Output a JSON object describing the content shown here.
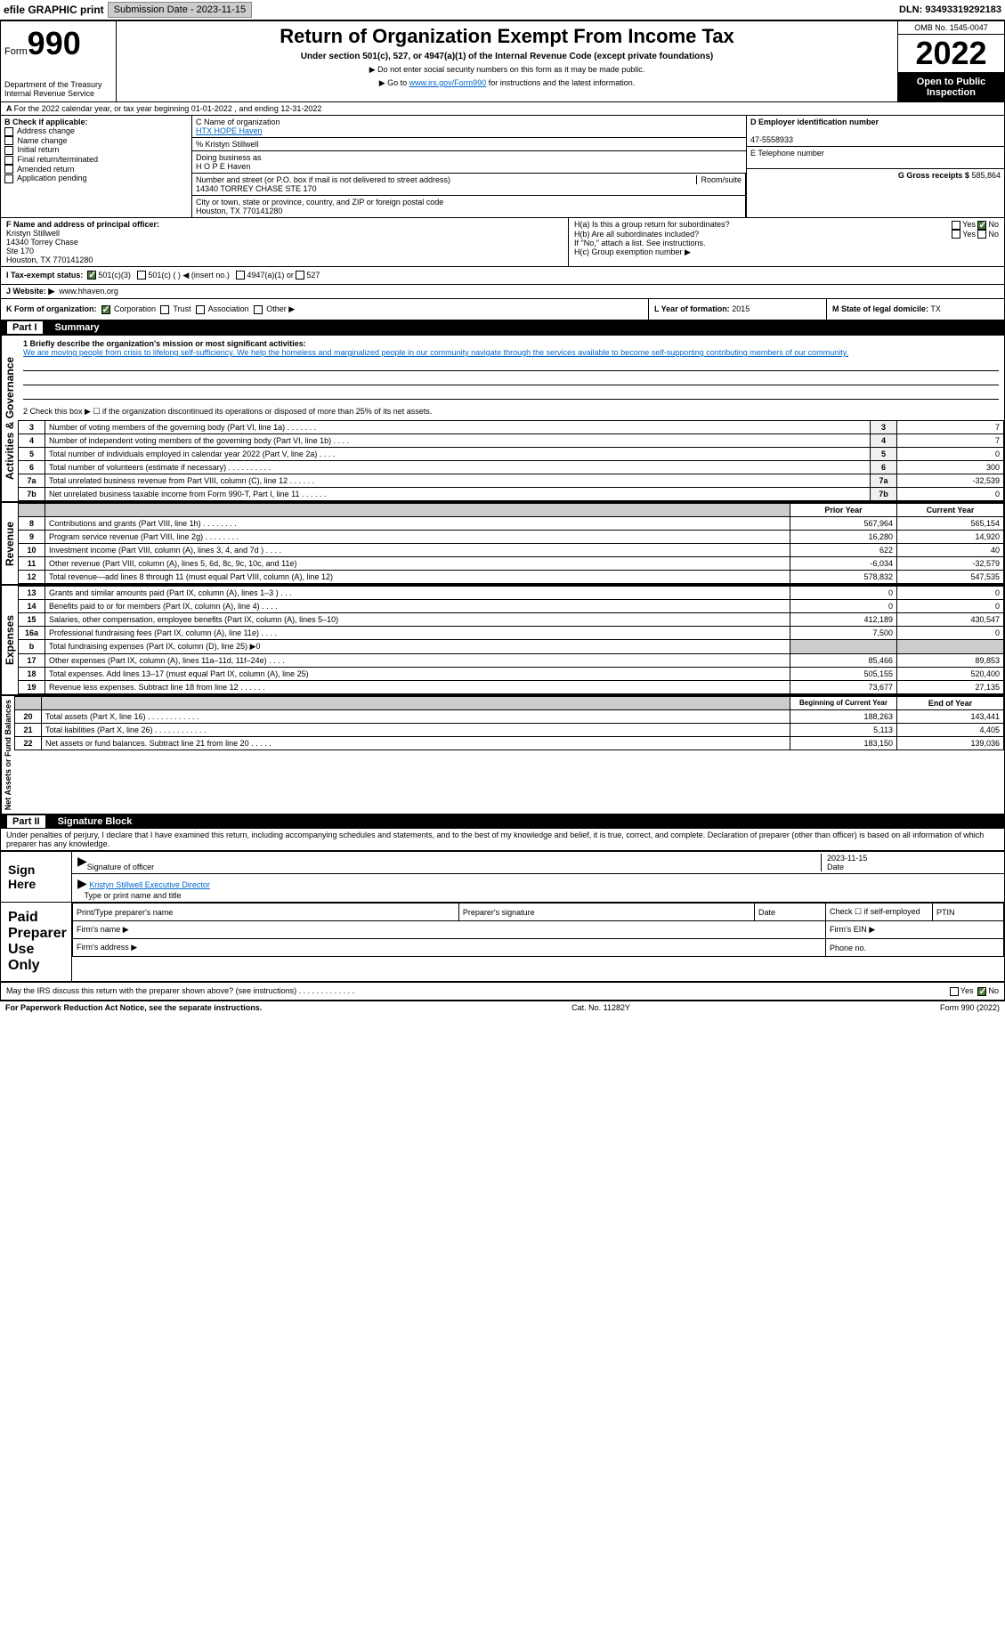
{
  "topbar": {
    "efile_label": "efile GRAPHIC print",
    "submission_label": "Submission Date - 2023-11-15",
    "dln": "DLN: 93493319292183"
  },
  "header": {
    "form_word": "Form",
    "form_num": "990",
    "dept": "Department of the Treasury Internal Revenue Service",
    "title": "Return of Organization Exempt From Income Tax",
    "subtitle": "Under section 501(c), 527, or 4947(a)(1) of the Internal Revenue Code (except private foundations)",
    "note1": "▶ Do not enter social security numbers on this form as it may be made public.",
    "note2_pre": "▶ Go to ",
    "note2_link": "www.irs.gov/Form990",
    "note2_post": " for instructions and the latest information.",
    "omb": "OMB No. 1545-0047",
    "year": "2022",
    "open": "Open to Public Inspection"
  },
  "section_a": "For the 2022 calendar year, or tax year beginning 01-01-2022    , and ending 12-31-2022",
  "section_b": {
    "label": "B Check if applicable:",
    "items": [
      "Address change",
      "Name change",
      "Initial return",
      "Final return/terminated",
      "Amended return",
      "Application pending"
    ]
  },
  "section_c": {
    "name_label": "C Name of organization",
    "name": "HTX HOPE Haven",
    "care_of": "% Kristyn Stillwell",
    "dba_label": "Doing business as",
    "dba": "H O P E Haven",
    "street_label": "Number and street (or P.O. box if mail is not delivered to street address)",
    "room_label": "Room/suite",
    "street": "14340 TORREY CHASE STE 170",
    "city_label": "City or town, state or province, country, and ZIP or foreign postal code",
    "city": "Houston, TX  770141280"
  },
  "section_d": {
    "label": "D Employer identification number",
    "value": "47-5558933"
  },
  "section_e": {
    "label": "E Telephone number",
    "value": ""
  },
  "section_g": {
    "label": "G Gross receipts $",
    "value": "585,864"
  },
  "section_f": {
    "label": "F  Name and address of principal officer:",
    "name": "Kristyn Stillwell",
    "addr1": "14340 Torrey Chase",
    "addr2": "Ste 170",
    "addr3": "Houston, TX  770141280"
  },
  "section_h": {
    "a": "H(a)  Is this a group return for subordinates?",
    "b": "H(b)  Are all subordinates included?",
    "b_note": "If \"No,\" attach a list. See instructions.",
    "c": "H(c)  Group exemption number ▶",
    "yes": "Yes",
    "no": "No"
  },
  "section_i": {
    "label": "I  Tax-exempt status:",
    "opts": [
      "501(c)(3)",
      "501(c) (  ) ◀ (insert no.)",
      "4947(a)(1) or",
      "527"
    ]
  },
  "section_j": {
    "label": "J  Website: ▶",
    "value": "www.hhaven.org"
  },
  "section_k": {
    "label": "K Form of organization:",
    "opts": [
      "Corporation",
      "Trust",
      "Association",
      "Other ▶"
    ]
  },
  "section_l": {
    "label": "L Year of formation:",
    "value": "2015"
  },
  "section_m": {
    "label": "M State of legal domicile:",
    "value": "TX"
  },
  "part1": {
    "hdr": "Part I",
    "title": "Summary"
  },
  "summary": {
    "line1_label": "1  Briefly describe the organization's mission or most significant activities:",
    "line1_text": "We are moving people from crisis to lifelong self-sufficiency. We help the homeless and marginalized people in our community navigate through the services available to become self-supporting contributing members of our community.",
    "line2": "2  Check this box ▶ ☐  if the organization discontinued its operations or disposed of more than 25% of its net assets.",
    "rows_ag": [
      {
        "n": "3",
        "t": "Number of voting members of the governing body (Part VI, line 1a)  .   .   .   .   .   .   .",
        "box": "3",
        "v": "7"
      },
      {
        "n": "4",
        "t": "Number of independent voting members of the governing body (Part VI, line 1b)   .   .   .   .",
        "box": "4",
        "v": "7"
      },
      {
        "n": "5",
        "t": "Total number of individuals employed in calendar year 2022 (Part V, line 2a)   .   .   .   .",
        "box": "5",
        "v": "0"
      },
      {
        "n": "6",
        "t": "Total number of volunteers (estimate if necessary)   .   .   .   .   .   .   .   .   .   .",
        "box": "6",
        "v": "300"
      },
      {
        "n": "7a",
        "t": "Total unrelated business revenue from Part VIII, column (C), line 12   .   .   .   .   .   .",
        "box": "7a",
        "v": "-32,539"
      },
      {
        "n": "7b",
        "t": "Net unrelated business taxable income from Form 990-T, Part I, line 11   .   .   .   .   .   .",
        "box": "7b",
        "v": "0"
      }
    ],
    "col_prior": "Prior Year",
    "col_current": "Current Year",
    "rows_rev": [
      {
        "n": "8",
        "t": "Contributions and grants (Part VIII, line 1h)   .   .   .   .   .   .   .   .",
        "p": "567,964",
        "c": "565,154"
      },
      {
        "n": "9",
        "t": "Program service revenue (Part VIII, line 2g)    .   .   .   .   .   .   .   .",
        "p": "16,280",
        "c": "14,920"
      },
      {
        "n": "10",
        "t": "Investment income (Part VIII, column (A), lines 3, 4, and 7d )    .   .   .   .",
        "p": "622",
        "c": "40"
      },
      {
        "n": "11",
        "t": "Other revenue (Part VIII, column (A), lines 5, 6d, 8c, 9c, 10c, and 11e)",
        "p": "-6,034",
        "c": "-32,579"
      },
      {
        "n": "12",
        "t": "Total revenue—add lines 8 through 11 (must equal Part VIII, column (A), line 12)",
        "p": "578,832",
        "c": "547,535"
      }
    ],
    "rows_exp": [
      {
        "n": "13",
        "t": "Grants and similar amounts paid (Part IX, column (A), lines 1–3 )   .   .   .",
        "p": "0",
        "c": "0"
      },
      {
        "n": "14",
        "t": "Benefits paid to or for members (Part IX, column (A), line 4)   .   .   .   .",
        "p": "0",
        "c": "0"
      },
      {
        "n": "15",
        "t": "Salaries, other compensation, employee benefits (Part IX, column (A), lines 5–10)",
        "p": "412,189",
        "c": "430,547"
      },
      {
        "n": "16a",
        "t": "Professional fundraising fees (Part IX, column (A), line 11e)   .   .   .   .",
        "p": "7,500",
        "c": "0"
      },
      {
        "n": "b",
        "t": "Total fundraising expenses (Part IX, column (D), line 25) ▶0",
        "p": "",
        "c": "",
        "shade": true
      },
      {
        "n": "17",
        "t": "Other expenses (Part IX, column (A), lines 11a–11d, 11f–24e)    .   .   .   .",
        "p": "85,466",
        "c": "89,853"
      },
      {
        "n": "18",
        "t": "Total expenses. Add lines 13–17 (must equal Part IX, column (A), line 25)",
        "p": "505,155",
        "c": "520,400"
      },
      {
        "n": "19",
        "t": "Revenue less expenses. Subtract line 18 from line 12    .   .   .   .   .   .",
        "p": "73,677",
        "c": "27,135"
      }
    ],
    "col_begin": "Beginning of Current Year",
    "col_end": "End of Year",
    "rows_net": [
      {
        "n": "20",
        "t": "Total assets (Part X, line 16)   .   .   .   .   .   .   .   .   .   .   .   .",
        "p": "188,263",
        "c": "143,441"
      },
      {
        "n": "21",
        "t": "Total liabilities (Part X, line 26)  .   .   .   .   .   .   .   .   .   .   .   .",
        "p": "5,113",
        "c": "4,405"
      },
      {
        "n": "22",
        "t": "Net assets or fund balances. Subtract line 21 from line 20    .   .   .   .   .",
        "p": "183,150",
        "c": "139,036"
      }
    ],
    "vtabs": [
      "Activities & Governance",
      "Revenue",
      "Expenses",
      "Net Assets or Fund Balances"
    ]
  },
  "part2": {
    "hdr": "Part II",
    "title": "Signature Block",
    "decl": "Under penalties of perjury, I declare that I have examined this return, including accompanying schedules and statements, and to the best of my knowledge and belief, it is true, correct, and complete. Declaration of preparer (other than officer) is based on all information of which preparer has any knowledge.",
    "sign_here": "Sign Here",
    "sig_officer": "Signature of officer",
    "sig_date": "2023-11-15",
    "date_label": "Date",
    "name_title": "Kristyn Stillwell Executive Director",
    "name_title_label": "Type or print name and title",
    "paid": "Paid Preparer Use Only",
    "prep_name": "Print/Type preparer's name",
    "prep_sig": "Preparer's signature",
    "prep_date": "Date",
    "prep_check": "Check ☐ if self-employed",
    "ptin": "PTIN",
    "firm_name": "Firm's name    ▶",
    "firm_ein": "Firm's EIN ▶",
    "firm_addr": "Firm's address ▶",
    "phone": "Phone no.",
    "discuss": "May the IRS discuss this return with the preparer shown above? (see instructions)   .   .   .   .   .   .   .   .   .   .   .   .   .",
    "yes": "Yes",
    "no": "No"
  },
  "footer": {
    "left": "For Paperwork Reduction Act Notice, see the separate instructions.",
    "mid": "Cat. No. 11282Y",
    "right": "Form 990 (2022)"
  },
  "colors": {
    "link": "#0066cc",
    "checked_bg": "#4a7a3a",
    "shade": "#cccccc"
  }
}
